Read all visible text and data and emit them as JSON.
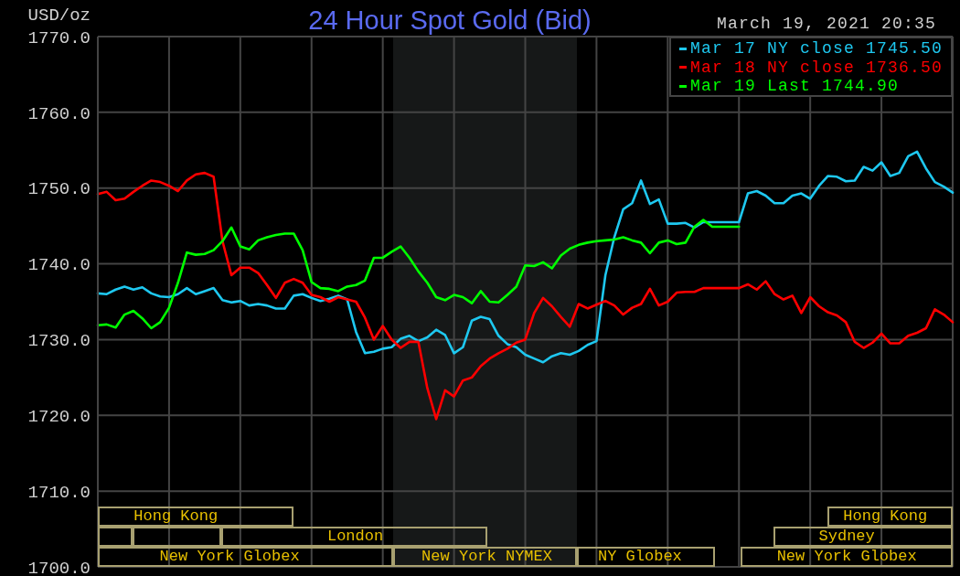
{
  "chart_data": {
    "type": "line",
    "title": "24 Hour Spot Gold (Bid)",
    "subtitle": "March 19, 2021 20:35",
    "ylabel": "USD/oz",
    "categories": [
      null,
      null,
      null,
      null,
      null,
      null,
      null,
      null,
      null,
      null,
      null,
      null,
      null,
      null,
      null,
      null,
      null,
      null,
      null,
      null,
      null,
      null,
      null,
      null,
      null,
      null,
      null,
      null,
      null,
      null,
      null,
      null,
      null,
      null,
      null,
      null,
      null,
      null,
      null,
      null,
      null,
      null,
      null,
      null,
      null,
      null,
      null,
      null,
      null,
      null,
      null,
      null,
      null,
      null,
      null,
      null,
      null,
      null,
      null,
      null,
      null,
      null,
      null,
      null,
      null,
      null,
      null,
      null,
      null,
      null,
      null,
      null,
      null,
      null,
      null,
      null,
      null,
      null,
      null,
      null,
      null,
      null,
      null,
      null,
      null,
      null,
      null,
      null,
      null,
      null,
      null,
      null,
      null,
      null,
      null,
      null,
      null
    ],
    "series": [
      {
        "name": "Mar 17 NY close 1745.50",
        "color": "#1ec8f0",
        "values": [
          1736.1,
          1736.0,
          1736.6,
          1737.0,
          1736.6,
          1736.9,
          1736.1,
          1735.7,
          1735.6,
          1736.0,
          1736.8,
          1736.0,
          1736.4,
          1736.8,
          1735.2,
          1734.9,
          1735.1,
          1734.5,
          1734.7,
          1734.5,
          1734.1,
          1734.1,
          1735.8,
          1736.0,
          1735.5,
          1735.1,
          1735.4,
          1735.8,
          1735.3,
          1731.0,
          1728.2,
          1728.4,
          1728.8,
          1729.0,
          1730.1,
          1730.5,
          1729.8,
          1730.3,
          1731.3,
          1730.6,
          1728.2,
          1729.0,
          1732.5,
          1733.0,
          1732.7,
          1730.5,
          1729.4,
          1729.0,
          1728.0,
          1727.5,
          1727.0,
          1727.8,
          1728.2,
          1728.0,
          1728.5,
          1729.3,
          1729.8,
          1738.5,
          1743.5,
          1747.2,
          1748.0,
          1751.0,
          1747.9,
          1748.5,
          1745.3,
          1745.3,
          1745.4,
          1744.8,
          1745.5,
          1745.5,
          1745.5,
          1745.5,
          1745.5,
          1749.3,
          1749.6,
          1749.0,
          1748.0,
          1748.0,
          1749.0,
          1749.3,
          1748.6,
          1750.3,
          1751.6,
          1751.5,
          1750.9,
          1751.0,
          1752.8,
          1752.3,
          1753.4,
          1751.6,
          1752.0,
          1754.2,
          1754.8,
          1752.6,
          1750.8,
          1750.2,
          1749.4
        ]
      },
      {
        "name": "Mar 18 NY close 1736.50",
        "color": "#ff0000",
        "values": [
          1749.2,
          1749.5,
          1748.4,
          1748.6,
          1749.5,
          1750.3,
          1751.0,
          1750.8,
          1750.3,
          1749.6,
          1751.0,
          1751.8,
          1752.0,
          1751.5,
          1743.0,
          1738.5,
          1739.5,
          1739.5,
          1738.8,
          1737.2,
          1735.5,
          1737.5,
          1738.0,
          1737.5,
          1735.9,
          1735.6,
          1735.0,
          1735.6,
          1735.3,
          1735.0,
          1732.9,
          1730.0,
          1731.8,
          1730.0,
          1728.9,
          1729.7,
          1729.7,
          1723.6,
          1719.5,
          1723.3,
          1722.5,
          1724.6,
          1725.0,
          1726.5,
          1727.5,
          1728.2,
          1728.8,
          1729.6,
          1730.0,
          1733.5,
          1735.5,
          1734.4,
          1733.0,
          1731.7,
          1734.7,
          1734.1,
          1734.6,
          1735.1,
          1734.5,
          1733.3,
          1734.2,
          1734.7,
          1736.7,
          1734.5,
          1735.0,
          1736.2,
          1736.3,
          1736.3,
          1736.8,
          1736.8,
          1736.8,
          1736.8,
          1736.8,
          1737.3,
          1736.6,
          1737.7,
          1736.0,
          1735.3,
          1735.8,
          1733.5,
          1735.6,
          1734.4,
          1733.6,
          1733.2,
          1732.3,
          1729.7,
          1728.9,
          1729.6,
          1730.8,
          1729.5,
          1729.5,
          1730.5,
          1730.9,
          1731.5,
          1734.0,
          1733.3,
          1732.3
        ]
      },
      {
        "name": "Mar 19 Last 1744.90",
        "color": "#00ff00",
        "values": [
          1731.9,
          1732.0,
          1731.6,
          1733.3,
          1733.8,
          1732.8,
          1731.5,
          1732.3,
          1734.2,
          1737.5,
          1741.5,
          1741.2,
          1741.3,
          1741.8,
          1743.0,
          1744.8,
          1742.3,
          1741.9,
          1743.1,
          1743.5,
          1743.8,
          1744.0,
          1744.0,
          1741.8,
          1737.6,
          1736.8,
          1736.7,
          1736.4,
          1737.0,
          1737.2,
          1737.8,
          1740.8,
          1740.8,
          1741.6,
          1742.3,
          1740.8,
          1739.0,
          1737.5,
          1735.6,
          1735.2,
          1735.9,
          1735.6,
          1734.8,
          1736.4,
          1735.0,
          1734.9,
          1735.9,
          1737.0,
          1739.8,
          1739.7,
          1740.2,
          1739.4,
          1741.1,
          1742.0,
          1742.5,
          1742.8,
          1743.0,
          1743.1,
          1743.2,
          1743.5,
          1743.1,
          1742.8,
          1741.4,
          1742.8,
          1743.1,
          1742.6,
          1742.8,
          1744.9,
          1745.8,
          1744.9,
          1744.9,
          1744.9,
          1744.9,
          null,
          null,
          null,
          null,
          null,
          null,
          null,
          null,
          null,
          null,
          null,
          null,
          null,
          null,
          null,
          null,
          null,
          null,
          null,
          null,
          null,
          null,
          null,
          null
        ]
      }
    ],
    "ylim": [
      1700,
      1770
    ],
    "yticks": [
      {
        "value": 1700,
        "label": "1700.0"
      },
      {
        "value": 1710,
        "label": "1710.0"
      },
      {
        "value": 1720,
        "label": "1720.0"
      },
      {
        "value": 1730,
        "label": "1730.0"
      },
      {
        "value": 1740,
        "label": "1740.0"
      },
      {
        "value": 1750,
        "label": "1750.0"
      },
      {
        "value": 1760,
        "label": "1760.0"
      },
      {
        "value": 1770,
        "label": "1770.0"
      }
    ],
    "grid": true,
    "legend": "top right",
    "tick_labels": "y",
    "annotations": [
      "Hong Kong",
      "Hong Kong",
      "London",
      "Sydney",
      "New York Globex",
      "New York NYMEX",
      "NY Globex",
      "New York Globex"
    ]
  }
}
